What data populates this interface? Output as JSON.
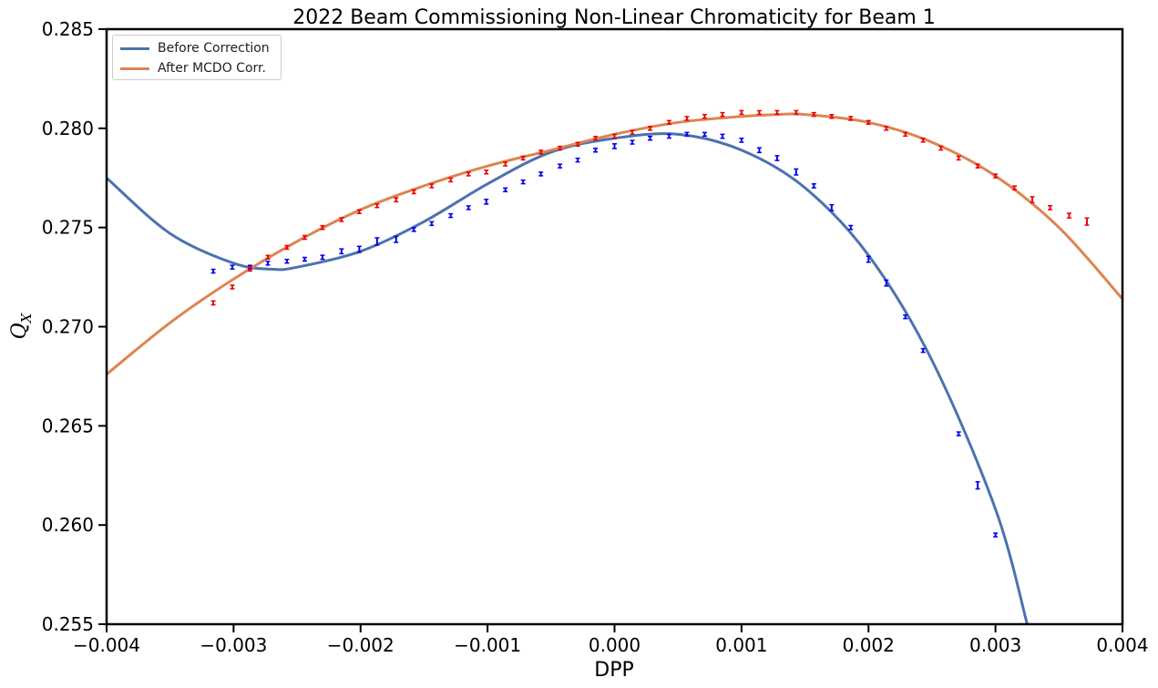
{
  "chart_data": {
    "type": "line",
    "title": "2022 Beam Commissioning Non-Linear Chromaticity for Beam 1",
    "xlabel": "DPP",
    "ylabel": "Q",
    "ylabel_sub": "X",
    "xlim": [
      -0.004,
      0.004
    ],
    "ylim": [
      0.255,
      0.285
    ],
    "x_ticks": [
      -0.004,
      -0.003,
      -0.002,
      -0.001,
      0.0,
      0.001,
      0.002,
      0.003,
      0.004
    ],
    "x_tick_labels": [
      "−0.004",
      "−0.003",
      "−0.002",
      "−0.001",
      "0.000",
      "0.001",
      "0.002",
      "0.003",
      "0.004"
    ],
    "y_ticks": [
      0.255,
      0.26,
      0.265,
      0.27,
      0.275,
      0.28,
      0.285
    ],
    "y_tick_labels": [
      "0.255",
      "0.260",
      "0.265",
      "0.270",
      "0.275",
      "0.280",
      "0.285"
    ],
    "grid": false,
    "legend_position": "top-left",
    "series": [
      {
        "name": "Before Correction",
        "color": "#4c72b0",
        "x": [
          -0.004,
          -0.0035,
          -0.003,
          -0.0027,
          -0.0025,
          -0.002,
          -0.0015,
          -0.001,
          -0.0005,
          0.0,
          0.0005,
          0.001,
          0.0015,
          0.002,
          0.0025,
          0.003,
          0.00325
        ],
        "y": [
          0.2775,
          0.2747,
          0.2732,
          0.2729,
          0.273,
          0.2738,
          0.2753,
          0.2772,
          0.2788,
          0.2795,
          0.2797,
          0.2789,
          0.277,
          0.2736,
          0.2683,
          0.2608,
          0.255
        ]
      },
      {
        "name": "After MCDO Corr.",
        "color": "#dd8452",
        "x": [
          -0.004,
          -0.0035,
          -0.003,
          -0.0025,
          -0.002,
          -0.0015,
          -0.001,
          -0.0005,
          0.0,
          0.0005,
          0.001,
          0.0013,
          0.0015,
          0.002,
          0.0025,
          0.003,
          0.0035,
          0.004
        ],
        "y": [
          0.2676,
          0.2702,
          0.2724,
          0.2743,
          0.2759,
          0.2771,
          0.2781,
          0.2789,
          0.2797,
          0.2803,
          0.2806,
          0.2807,
          0.2807,
          0.2803,
          0.2793,
          0.2776,
          0.275,
          0.2714
        ]
      }
    ],
    "measurements": [
      {
        "color": "#0000ee",
        "points": [
          [
            -0.00316,
            0.2728,
            5e-05
          ],
          [
            -0.00301,
            0.273,
            5e-05
          ],
          [
            -0.00287,
            0.273,
            5e-05
          ],
          [
            -0.00273,
            0.2732,
            6e-05
          ],
          [
            -0.00258,
            0.2733,
            5e-05
          ],
          [
            -0.00244,
            0.2734,
            6e-05
          ],
          [
            -0.0023,
            0.2735,
            0.0001
          ],
          [
            -0.00215,
            0.2738,
            0.00012
          ],
          [
            -0.00201,
            0.2739,
            0.00015
          ],
          [
            -0.00187,
            0.2743,
            0.00018
          ],
          [
            -0.00172,
            0.2744,
            0.00015
          ],
          [
            -0.00158,
            0.2749,
            8e-05
          ],
          [
            -0.00144,
            0.2752,
            8e-05
          ],
          [
            -0.00129,
            0.2756,
            8e-05
          ],
          [
            -0.00115,
            0.276,
            6e-05
          ],
          [
            -0.00101,
            0.2763,
            0.00012
          ],
          [
            -0.00086,
            0.2769,
            6e-05
          ],
          [
            -0.00072,
            0.2773,
            6e-05
          ],
          [
            -0.00058,
            0.2777,
            5e-05
          ],
          [
            -0.00043,
            0.2781,
            5e-05
          ],
          [
            -0.00029,
            0.2784,
            8e-05
          ],
          [
            -0.00015,
            0.2789,
            5e-05
          ],
          [
            0.0,
            0.2791,
            0.00012
          ],
          [
            0.00014,
            0.2793,
            6e-05
          ],
          [
            0.00028,
            0.2795,
            8e-05
          ],
          [
            0.00043,
            0.2796,
            6e-05
          ],
          [
            0.00057,
            0.2797,
            5e-05
          ],
          [
            0.00071,
            0.2797,
            8e-05
          ],
          [
            0.00085,
            0.2796,
            0.0001
          ],
          [
            0.001,
            0.2794,
            0.0001
          ],
          [
            0.00114,
            0.2789,
            0.00012
          ],
          [
            0.00128,
            0.2785,
            0.00012
          ],
          [
            0.00143,
            0.2778,
            0.00015
          ],
          [
            0.00157,
            0.2771,
            0.0001
          ],
          [
            0.00171,
            0.276,
            0.00015
          ],
          [
            0.00186,
            0.275,
            0.0001
          ],
          [
            0.002,
            0.2734,
            0.00015
          ],
          [
            0.00214,
            0.2722,
            0.00015
          ],
          [
            0.00229,
            0.2705,
            5e-05
          ],
          [
            0.00243,
            0.2688,
            6e-05
          ],
          [
            0.00271,
            0.2646,
            5e-05
          ],
          [
            0.00286,
            0.262,
            0.00018
          ],
          [
            0.003,
            0.2595,
            5e-05
          ]
        ]
      },
      {
        "color": "#ee0000",
        "points": [
          [
            -0.00316,
            0.2712,
            0.0001
          ],
          [
            -0.00301,
            0.272,
            8e-05
          ],
          [
            -0.00287,
            0.2729,
            8e-05
          ],
          [
            -0.00273,
            0.2735,
            6e-05
          ],
          [
            -0.00258,
            0.274,
            5e-05
          ],
          [
            -0.00244,
            0.2745,
            5e-05
          ],
          [
            -0.0023,
            0.275,
            5e-05
          ],
          [
            -0.00215,
            0.2754,
            5e-05
          ],
          [
            -0.00201,
            0.2758,
            5e-05
          ],
          [
            -0.00187,
            0.2761,
            5e-05
          ],
          [
            -0.00172,
            0.2764,
            0.0001
          ],
          [
            -0.00158,
            0.2768,
            5e-05
          ],
          [
            -0.00144,
            0.2771,
            5e-05
          ],
          [
            -0.00129,
            0.2774,
            6e-05
          ],
          [
            -0.00115,
            0.2777,
            5e-05
          ],
          [
            -0.00101,
            0.2778,
            8e-05
          ],
          [
            -0.00086,
            0.2782,
            6e-05
          ],
          [
            -0.00072,
            0.2785,
            6e-05
          ],
          [
            -0.00058,
            0.2788,
            6e-05
          ],
          [
            -0.00043,
            0.279,
            5e-05
          ],
          [
            -0.00029,
            0.2792,
            8e-05
          ],
          [
            -0.00015,
            0.2795,
            5e-05
          ],
          [
            0.0,
            0.2796,
            0.0001
          ],
          [
            0.00014,
            0.2798,
            5e-05
          ],
          [
            0.00028,
            0.28,
            5e-05
          ],
          [
            0.00043,
            0.2803,
            5e-05
          ],
          [
            0.00057,
            0.2805,
            5e-05
          ],
          [
            0.00071,
            0.2806,
            5e-05
          ],
          [
            0.00085,
            0.2807,
            5e-05
          ],
          [
            0.001,
            0.2808,
            6e-05
          ],
          [
            0.00114,
            0.2808,
            6e-05
          ],
          [
            0.00128,
            0.2808,
            5e-05
          ],
          [
            0.00143,
            0.2808,
            5e-05
          ],
          [
            0.00157,
            0.2807,
            5e-05
          ],
          [
            0.00171,
            0.2806,
            5e-05
          ],
          [
            0.00186,
            0.2805,
            5e-05
          ],
          [
            0.002,
            0.2803,
            5e-05
          ],
          [
            0.00214,
            0.28,
            5e-05
          ],
          [
            0.00229,
            0.2797,
            8e-05
          ],
          [
            0.00243,
            0.2794,
            5e-05
          ],
          [
            0.00257,
            0.279,
            5e-05
          ],
          [
            0.00271,
            0.2785,
            5e-05
          ],
          [
            0.00286,
            0.2781,
            5e-05
          ],
          [
            0.003,
            0.2776,
            5e-05
          ],
          [
            0.00315,
            0.277,
            5e-05
          ],
          [
            0.00329,
            0.2764,
            0.00015
          ],
          [
            0.00343,
            0.276,
            0.0001
          ],
          [
            0.00358,
            0.2756,
            0.00012
          ],
          [
            0.00372,
            0.2753,
            0.00018
          ]
        ]
      }
    ]
  }
}
